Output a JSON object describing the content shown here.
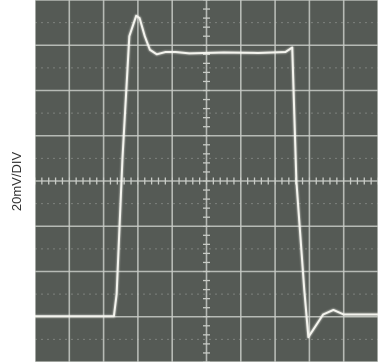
{
  "chart_data": {
    "type": "line",
    "ylabel": "20mV/DIV",
    "grid": true,
    "divisions": {
      "x": 10,
      "y": 8
    },
    "xlim": [
      0,
      10
    ],
    "ylim": [
      -4,
      4
    ],
    "series": [
      {
        "x": [
          0,
          2.3,
          2.38,
          2.55,
          2.75,
          2.95,
          3.05,
          3.2,
          3.35,
          3.55,
          3.8,
          4.1,
          4.5,
          5.5,
          6.5,
          7.3,
          7.5,
          7.62,
          7.85,
          7.97,
          8.1,
          8.4,
          8.7,
          9.0,
          10
        ],
        "y": [
          -2.99,
          -2.99,
          -2.5,
          0.5,
          3.2,
          3.65,
          3.6,
          3.2,
          2.9,
          2.8,
          2.85,
          2.85,
          2.82,
          2.84,
          2.83,
          2.85,
          2.95,
          0,
          -2.4,
          -3.45,
          -3.3,
          -2.95,
          -2.85,
          -2.95,
          -2.95
        ]
      }
    ],
    "colors": {
      "screen": "#555a55",
      "grid": "#c8cbc6",
      "trace": "#f4f4ee"
    }
  }
}
